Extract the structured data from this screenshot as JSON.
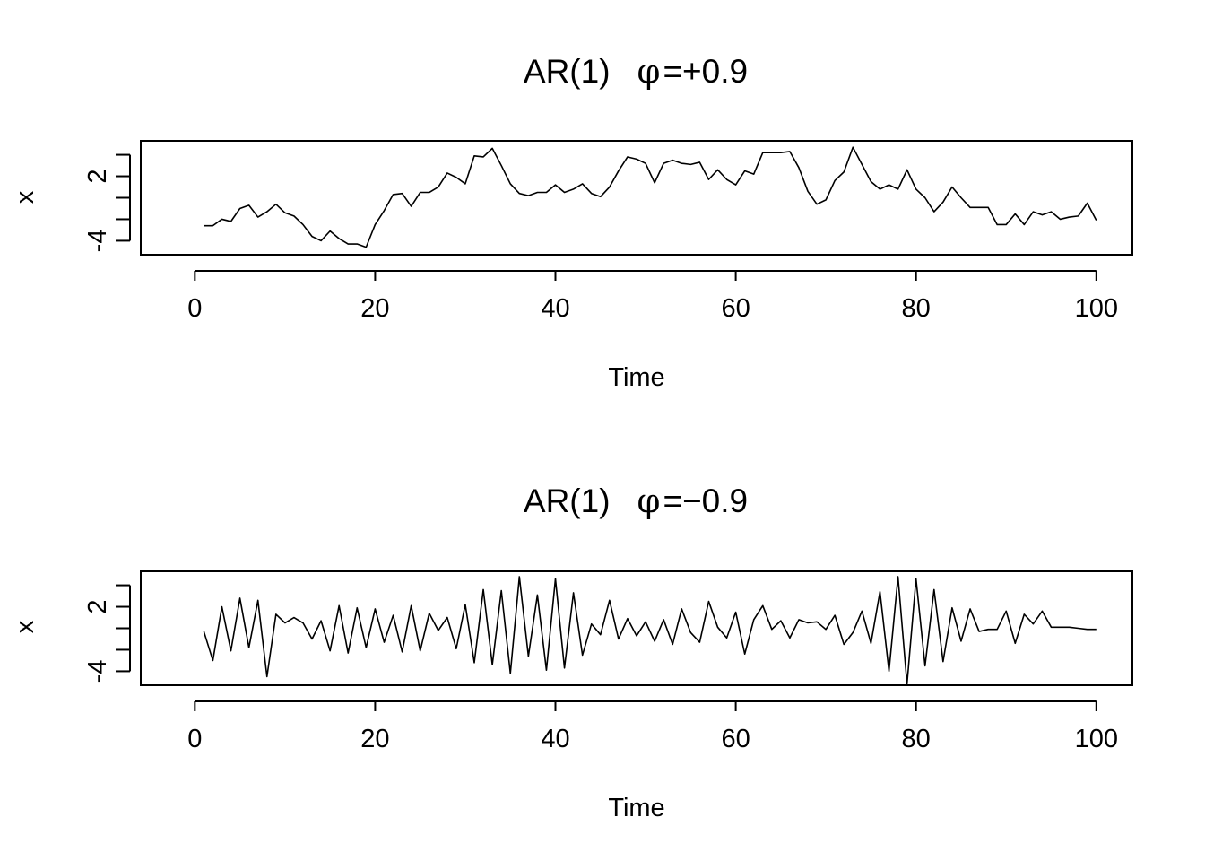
{
  "chart_data": [
    {
      "type": "line",
      "title": {
        "prefix": "AR(1)",
        "symbol": "φ",
        "equals": "=",
        "sign": "+",
        "value": "0.9"
      },
      "xlabel": "Time",
      "ylabel": "x",
      "xlim": [
        -6,
        104
      ],
      "ylim": [
        -5.3,
        5.3
      ],
      "xticks": [
        0,
        20,
        40,
        60,
        80,
        100
      ],
      "xtick_labels": [
        "0",
        "20",
        "40",
        "60",
        "80",
        "100"
      ],
      "yticks": [
        -4,
        -2,
        0,
        2,
        4
      ],
      "ytick_labels": [
        "-4",
        "",
        "",
        "2",
        ""
      ],
      "grid": false,
      "series": [
        {
          "x_start": 1,
          "values": [
            -2.6,
            -2.6,
            -2.0,
            -2.2,
            -1.0,
            -0.7,
            -1.8,
            -1.3,
            -0.6,
            -1.4,
            -1.7,
            -2.5,
            -3.6,
            -4.0,
            -3.1,
            -3.8,
            -4.3,
            -4.3,
            -4.6,
            -2.5,
            -1.2,
            0.3,
            0.4,
            -0.8,
            0.5,
            0.5,
            1.0,
            2.3,
            1.9,
            1.3,
            3.9,
            3.8,
            4.6,
            3.0,
            1.3,
            0.4,
            0.2,
            0.5,
            0.5,
            1.2,
            0.5,
            0.8,
            1.3,
            0.4,
            0.1,
            1.0,
            2.5,
            3.8,
            3.6,
            3.2,
            1.4,
            3.2,
            3.5,
            3.2,
            3.1,
            3.3,
            1.7,
            2.6,
            1.7,
            1.2,
            2.5,
            2.2,
            4.2,
            4.2,
            4.2,
            4.3,
            2.8,
            0.6,
            -0.6,
            -0.2,
            1.6,
            2.4,
            4.7,
            3.1,
            1.5,
            0.8,
            1.2,
            0.8,
            2.6,
            0.8,
            0.0,
            -1.3,
            -0.4,
            1.0,
            0.0,
            -0.9,
            -0.9,
            -0.9,
            -2.5,
            -2.5,
            -1.5,
            -2.5,
            -1.3,
            -1.6,
            -1.3,
            -2.0,
            -1.8,
            -1.7,
            -0.5,
            -2.1
          ]
        }
      ]
    },
    {
      "type": "line",
      "title": {
        "prefix": "AR(1)",
        "symbol": "φ",
        "equals": "=",
        "sign": "−",
        "value": "0.9"
      },
      "xlabel": "Time",
      "ylabel": "x",
      "xlim": [
        -6,
        104
      ],
      "ylim": [
        -5.3,
        5.3
      ],
      "xticks": [
        0,
        20,
        40,
        60,
        80,
        100
      ],
      "xtick_labels": [
        "0",
        "20",
        "40",
        "60",
        "80",
        "100"
      ],
      "yticks": [
        -4,
        -2,
        0,
        2,
        4
      ],
      "ytick_labels": [
        "-4",
        "",
        "",
        "2",
        ""
      ],
      "grid": false,
      "series": [
        {
          "x_start": 1,
          "values": [
            -0.3,
            -3.0,
            2.0,
            -2.1,
            2.8,
            -1.8,
            2.6,
            -4.5,
            1.3,
            0.5,
            1.0,
            0.5,
            -1.0,
            0.7,
            -2.1,
            2.1,
            -2.3,
            1.9,
            -1.8,
            1.8,
            -1.3,
            1.2,
            -2.2,
            2.1,
            -2.1,
            1.4,
            -0.2,
            1.0,
            -1.9,
            2.2,
            -3.2,
            3.6,
            -3.4,
            3.5,
            -4.2,
            4.8,
            -2.6,
            3.1,
            -3.9,
            4.6,
            -3.7,
            3.3,
            -2.5,
            0.4,
            -0.6,
            2.6,
            -1.0,
            0.9,
            -0.7,
            0.6,
            -1.2,
            0.8,
            -1.5,
            1.8,
            -0.4,
            -1.3,
            2.5,
            0.1,
            -0.9,
            1.5,
            -2.4,
            0.8,
            2.1,
            -0.1,
            0.7,
            -0.9,
            0.8,
            0.5,
            0.6,
            -0.1,
            1.2,
            -1.5,
            -0.4,
            1.6,
            -1.4,
            3.4,
            -4.0,
            4.8,
            -5.2,
            4.6,
            -3.5,
            3.6,
            -3.1,
            1.9,
            -1.2,
            1.8,
            -0.3,
            -0.1,
            -0.1,
            1.6,
            -1.4,
            1.3,
            0.4,
            1.6,
            0.1,
            0.1,
            0.1,
            0.0,
            -0.1,
            -0.1
          ]
        }
      ]
    }
  ]
}
